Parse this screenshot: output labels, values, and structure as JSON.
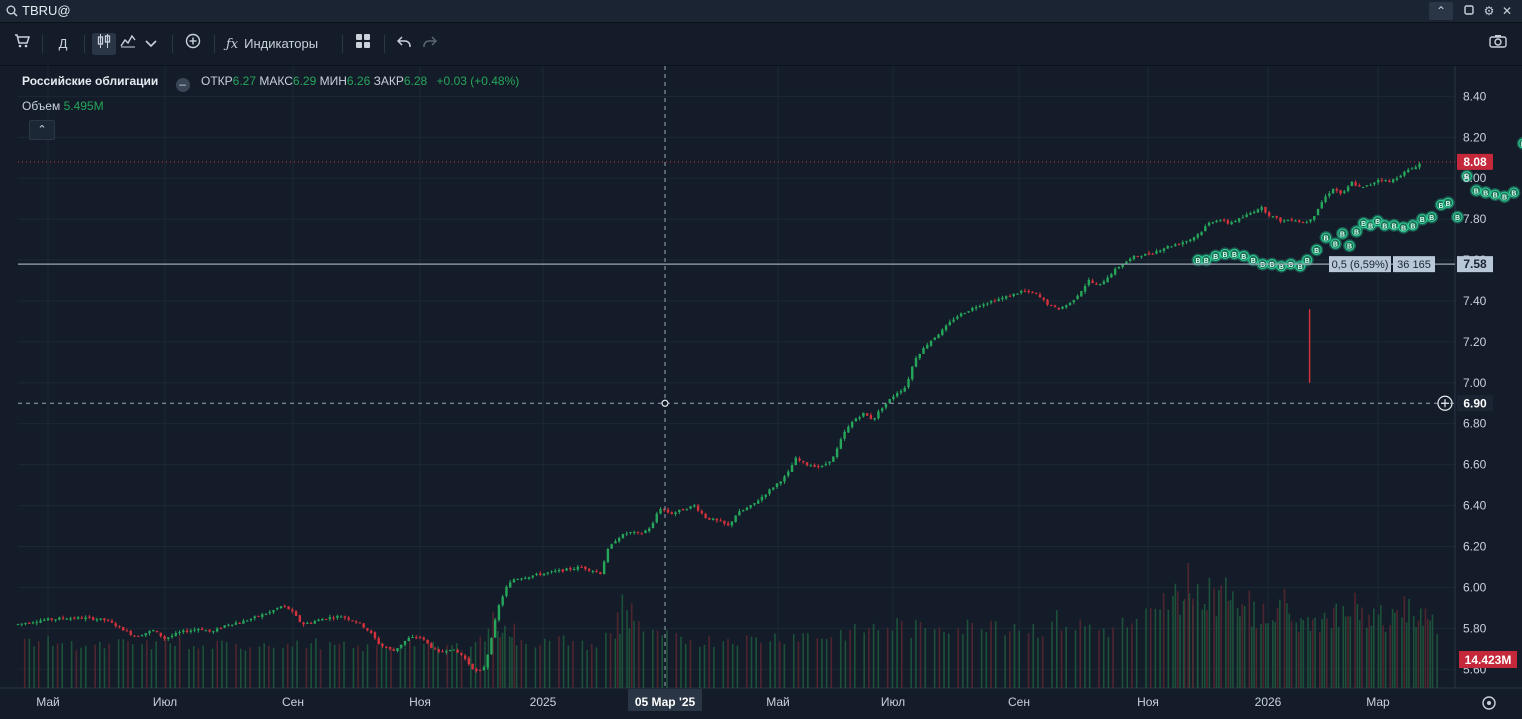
{
  "window": {
    "symbol": "TBRU@",
    "icons": [
      "search-icon",
      "chevron-up-icon",
      "maximize-icon",
      "gear-icon",
      "close-icon"
    ]
  },
  "toolbar": {
    "period_label": "Д",
    "indicators_label": "Индикаторы",
    "icons": [
      "cart-icon",
      "candles-icon",
      "chart-type-icon",
      "chevron-down-icon",
      "add-circle-icon",
      "fx-icon",
      "grid-icon",
      "undo-icon",
      "redo-icon",
      "camera-icon"
    ]
  },
  "legend": {
    "name": "Российские облигации",
    "open_label": "ОТКР",
    "open": "6.27",
    "high_label": "МАКС",
    "high": "6.29",
    "low_label": "МИН",
    "low": "6.26",
    "close_label": "ЗАКР",
    "close": "6.28",
    "change": "+0.03 (+0.48%)",
    "volume_label": "Объем",
    "volume": "5.495M"
  },
  "colors": {
    "background": "#131c28",
    "up": "#26a65b",
    "down": "#d4323d",
    "signal": "#2fd39a",
    "grid": "#1d2836"
  },
  "chart_data": {
    "type": "candlestick",
    "ylim": [
      5.44,
      8.48
    ],
    "yticks": [
      "8.40",
      "8.20",
      "8.00",
      "7.80",
      "7.60",
      "7.40",
      "7.20",
      "7.00",
      "6.80",
      "6.60",
      "6.40",
      "6.20",
      "6.00",
      "5.80",
      "5.60"
    ],
    "xticks": [
      "Май",
      "Июл",
      "Сен",
      "Ноя",
      "2025",
      "Мар",
      "Май",
      "Июл",
      "Сен",
      "Ноя",
      "2026",
      "Мар"
    ],
    "crosshair": {
      "date_label": "05 Мар '25",
      "price_label": "6.90"
    },
    "last_price_label": "8.08",
    "last_price": 8.08,
    "hline": {
      "value": 7.58,
      "label": "7.58",
      "info": "0,5 (6,59%)",
      "count": "36 165"
    },
    "volume_badge": "14.423M",
    "close_path": [
      [
        0,
        5.82
      ],
      [
        20,
        5.84
      ],
      [
        40,
        5.85
      ],
      [
        60,
        5.85
      ],
      [
        75,
        5.84
      ],
      [
        88,
        5.8
      ],
      [
        100,
        5.76
      ],
      [
        115,
        5.79
      ],
      [
        125,
        5.75
      ],
      [
        138,
        5.78
      ],
      [
        155,
        5.8
      ],
      [
        165,
        5.78
      ],
      [
        178,
        5.82
      ],
      [
        190,
        5.83
      ],
      [
        205,
        5.86
      ],
      [
        215,
        5.88
      ],
      [
        225,
        5.91
      ],
      [
        232,
        5.89
      ],
      [
        242,
        5.82
      ],
      [
        250,
        5.83
      ],
      [
        262,
        5.85
      ],
      [
        275,
        5.86
      ],
      [
        285,
        5.84
      ],
      [
        292,
        5.82
      ],
      [
        300,
        5.78
      ],
      [
        308,
        5.72
      ],
      [
        320,
        5.69
      ],
      [
        332,
        5.75
      ],
      [
        342,
        5.76
      ],
      [
        350,
        5.72
      ],
      [
        358,
        5.68
      ],
      [
        368,
        5.7
      ],
      [
        378,
        5.67
      ],
      [
        385,
        5.62
      ],
      [
        392,
        5.58
      ],
      [
        398,
        5.62
      ],
      [
        404,
        5.78
      ],
      [
        410,
        5.92
      ],
      [
        416,
        6.0
      ],
      [
        422,
        6.04
      ],
      [
        440,
        6.06
      ],
      [
        460,
        6.08
      ],
      [
        480,
        6.1
      ],
      [
        496,
        6.07
      ],
      [
        502,
        6.18
      ],
      [
        510,
        6.24
      ],
      [
        520,
        6.27
      ],
      [
        530,
        6.26
      ],
      [
        540,
        6.3
      ],
      [
        546,
        6.39
      ],
      [
        556,
        6.36
      ],
      [
        566,
        6.38
      ],
      [
        576,
        6.4
      ],
      [
        586,
        6.34
      ],
      [
        598,
        6.32
      ],
      [
        605,
        6.3
      ],
      [
        612,
        6.36
      ],
      [
        625,
        6.4
      ],
      [
        635,
        6.45
      ],
      [
        645,
        6.5
      ],
      [
        655,
        6.55
      ],
      [
        662,
        6.63
      ],
      [
        672,
        6.6
      ],
      [
        685,
        6.59
      ],
      [
        695,
        6.64
      ],
      [
        703,
        6.75
      ],
      [
        712,
        6.82
      ],
      [
        720,
        6.85
      ],
      [
        728,
        6.82
      ],
      [
        736,
        6.88
      ],
      [
        748,
        6.95
      ],
      [
        756,
        6.98
      ],
      [
        764,
        7.12
      ],
      [
        776,
        7.2
      ],
      [
        788,
        7.26
      ],
      [
        798,
        7.32
      ],
      [
        808,
        7.35
      ],
      [
        818,
        7.38
      ],
      [
        830,
        7.4
      ],
      [
        842,
        7.42
      ],
      [
        856,
        7.45
      ],
      [
        868,
        7.43
      ],
      [
        878,
        7.38
      ],
      [
        886,
        7.36
      ],
      [
        896,
        7.39
      ],
      [
        904,
        7.44
      ],
      [
        912,
        7.5
      ],
      [
        920,
        7.47
      ],
      [
        930,
        7.53
      ],
      [
        940,
        7.58
      ],
      [
        952,
        7.62
      ],
      [
        964,
        7.63
      ],
      [
        976,
        7.66
      ],
      [
        988,
        7.68
      ],
      [
        998,
        7.7
      ],
      [
        1006,
        7.73
      ],
      [
        1014,
        7.78
      ],
      [
        1022,
        7.8
      ],
      [
        1030,
        7.78
      ],
      [
        1040,
        7.8
      ],
      [
        1050,
        7.83
      ],
      [
        1058,
        7.86
      ],
      [
        1066,
        7.82
      ],
      [
        1076,
        7.79
      ],
      [
        1086,
        7.8
      ],
      [
        1096,
        7.78
      ],
      [
        1104,
        7.82
      ],
      [
        1112,
        7.9
      ],
      [
        1120,
        7.95
      ],
      [
        1128,
        7.92
      ],
      [
        1136,
        7.98
      ],
      [
        1144,
        7.95
      ],
      [
        1152,
        7.97
      ],
      [
        1160,
        8.0
      ],
      [
        1168,
        7.98
      ],
      [
        1178,
        8.02
      ],
      [
        1188,
        8.05
      ],
      [
        1196,
        8.08
      ]
    ],
    "volume_bars": [
      [
        5,
        40
      ],
      [
        25,
        35
      ],
      [
        45,
        30
      ],
      [
        65,
        28
      ],
      [
        85,
        33
      ],
      [
        105,
        30
      ],
      [
        125,
        38
      ],
      [
        145,
        25
      ],
      [
        165,
        30
      ],
      [
        185,
        28
      ],
      [
        205,
        35
      ],
      [
        225,
        30
      ],
      [
        245,
        33
      ],
      [
        265,
        28
      ],
      [
        285,
        25
      ],
      [
        305,
        30
      ],
      [
        325,
        35
      ],
      [
        345,
        30
      ],
      [
        365,
        28
      ],
      [
        385,
        40
      ],
      [
        400,
        70
      ],
      [
        410,
        55
      ],
      [
        420,
        40
      ],
      [
        440,
        35
      ],
      [
        460,
        38
      ],
      [
        480,
        30
      ],
      [
        500,
        45
      ],
      [
        510,
        110
      ],
      [
        520,
        60
      ],
      [
        540,
        45
      ],
      [
        560,
        40
      ],
      [
        580,
        38
      ],
      [
        600,
        42
      ],
      [
        620,
        40
      ],
      [
        640,
        45
      ],
      [
        660,
        48
      ],
      [
        680,
        46
      ],
      [
        700,
        52
      ],
      [
        720,
        60
      ],
      [
        740,
        65
      ],
      [
        760,
        58
      ],
      [
        780,
        70
      ],
      [
        800,
        62
      ],
      [
        820,
        75
      ],
      [
        840,
        68
      ],
      [
        860,
        60
      ],
      [
        880,
        72
      ],
      [
        900,
        64
      ],
      [
        920,
        58
      ],
      [
        940,
        66
      ],
      [
        960,
        80
      ],
      [
        975,
        105
      ],
      [
        985,
        120
      ],
      [
        992,
        140
      ],
      [
        1000,
        95
      ],
      [
        1010,
        150
      ],
      [
        1020,
        118
      ],
      [
        1030,
        130
      ],
      [
        1040,
        100
      ],
      [
        1050,
        88
      ],
      [
        1060,
        90
      ],
      [
        1070,
        100
      ],
      [
        1080,
        82
      ],
      [
        1090,
        78
      ],
      [
        1100,
        70
      ],
      [
        1110,
        84
      ],
      [
        1120,
        88
      ],
      [
        1130,
        95
      ],
      [
        1140,
        80
      ],
      [
        1150,
        90
      ],
      [
        1160,
        78
      ],
      [
        1170,
        100
      ],
      [
        1180,
        95
      ],
      [
        1190,
        90
      ],
      [
        1196,
        70
      ]
    ],
    "signals": [
      [
        1005,
        7.6
      ],
      [
        1012,
        7.6
      ],
      [
        1020,
        7.62
      ],
      [
        1028,
        7.63
      ],
      [
        1036,
        7.63
      ],
      [
        1044,
        7.62
      ],
      [
        1052,
        7.6
      ],
      [
        1060,
        7.58
      ],
      [
        1068,
        7.58
      ],
      [
        1076,
        7.57
      ],
      [
        1084,
        7.58
      ],
      [
        1092,
        7.57
      ],
      [
        1098,
        7.6
      ],
      [
        1106,
        7.65
      ],
      [
        1114,
        7.71
      ],
      [
        1122,
        7.68
      ],
      [
        1128,
        7.73
      ],
      [
        1134,
        7.67
      ],
      [
        1140,
        7.74
      ],
      [
        1146,
        7.78
      ],
      [
        1152,
        7.77
      ],
      [
        1158,
        7.79
      ],
      [
        1164,
        7.77
      ],
      [
        1172,
        7.77
      ],
      [
        1180,
        7.76
      ],
      [
        1188,
        7.77
      ],
      [
        1196,
        7.8
      ],
      [
        1204,
        7.81
      ],
      [
        1212,
        7.87
      ],
      [
        1218,
        7.88
      ],
      [
        1226,
        7.81
      ],
      [
        1234,
        8.01
      ],
      [
        1242,
        7.94
      ],
      [
        1250,
        7.93
      ],
      [
        1258,
        7.92
      ],
      [
        1266,
        7.91
      ],
      [
        1274,
        7.93
      ],
      [
        1282,
        8.17
      ],
      [
        1290,
        7.96
      ],
      [
        1298,
        7.97
      ],
      [
        1306,
        8.03
      ],
      [
        1314,
        7.98
      ],
      [
        1322,
        8.04
      ],
      [
        1330,
        8.1
      ],
      [
        1338,
        8.11
      ],
      [
        1346,
        8.12
      ],
      [
        1354,
        8.09
      ],
      [
        1362,
        8.13
      ],
      [
        1370,
        8.15
      ],
      [
        1378,
        8.18
      ],
      [
        1386,
        8.18
      ],
      [
        1394,
        8.14
      ],
      [
        1402,
        8.24
      ],
      [
        1410,
        8.29
      ]
    ]
  }
}
